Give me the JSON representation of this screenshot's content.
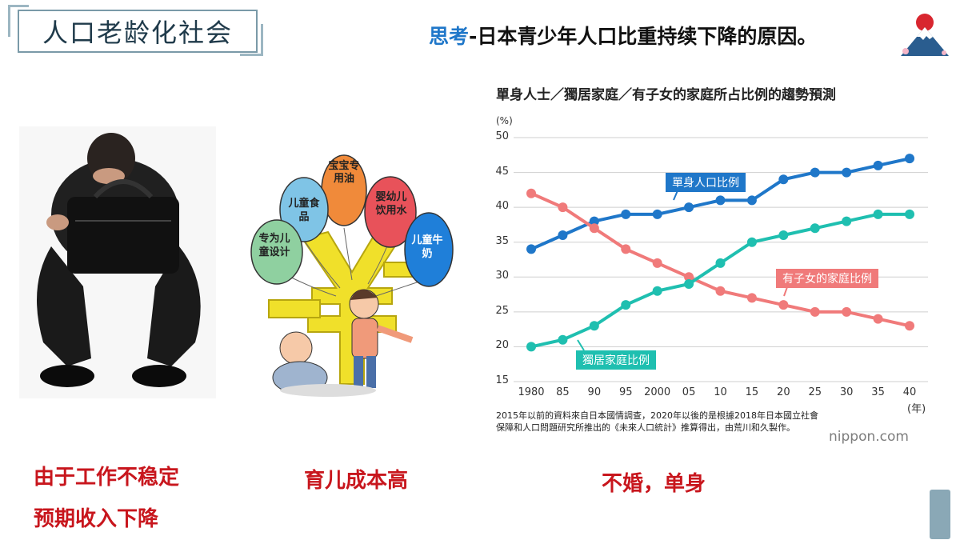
{
  "header": {
    "section_title": "人口老龄化社会",
    "headline_prefix": "思考",
    "headline_rest": "-日本青少年人口比重持续下降的原因。"
  },
  "illustrations": {
    "balloons": [
      "宝宝专用油",
      "婴幼儿饮用水",
      "儿童食品",
      "专为儿童设计",
      "儿童牛奶"
    ],
    "balloon_colors": [
      "#f08a3a",
      "#e8525a",
      "#7fc4e6",
      "#8fd0a0",
      "#1f7fd9"
    ]
  },
  "labels": {
    "reason_1_line1": "由于工作不稳定",
    "reason_1_line2": "预期收入下降",
    "reason_2": "育儿成本高",
    "reason_3": "不婚，单身"
  },
  "chart_data": {
    "type": "line",
    "title": "單身人士／獨居家庭／有子女的家庭所占比例的趨勢預測",
    "ylabel": "(%)",
    "xlabel": "(年)",
    "ylim": [
      15,
      50
    ],
    "yticks": [
      50,
      45,
      40,
      35,
      30,
      25,
      20,
      15
    ],
    "categories": [
      "1980",
      "85",
      "90",
      "95",
      "2000",
      "05",
      "10",
      "15",
      "20",
      "25",
      "30",
      "35",
      "40"
    ],
    "series": [
      {
        "name": "單身人口比例",
        "color": "#1f77c9",
        "values": [
          34,
          36,
          38,
          39,
          39,
          40,
          41,
          41,
          44,
          45,
          45,
          46,
          47
        ]
      },
      {
        "name": "有子女的家庭比例",
        "color": "#f07a7a",
        "values": [
          42,
          40,
          37,
          34,
          32,
          30,
          28,
          27,
          26,
          25,
          25,
          24,
          23
        ]
      },
      {
        "name": "獨居家庭比例",
        "color": "#1fbfb0",
        "values": [
          20,
          21,
          23,
          26,
          28,
          29,
          32,
          35,
          36,
          37,
          38,
          39,
          39
        ]
      }
    ],
    "grid": true,
    "note": "2015年以前的資料來自日本國情調查，2020年以後的是根據2018年日本國立社會保障和人口問題研究所推出的《未來人口統計》推算得出，由荒川和久製作。",
    "source": "nippon.com"
  },
  "colors": {
    "accent_red": "#c8161d",
    "accent_blue": "#1f77c9",
    "frame": "#7a9aa8"
  }
}
